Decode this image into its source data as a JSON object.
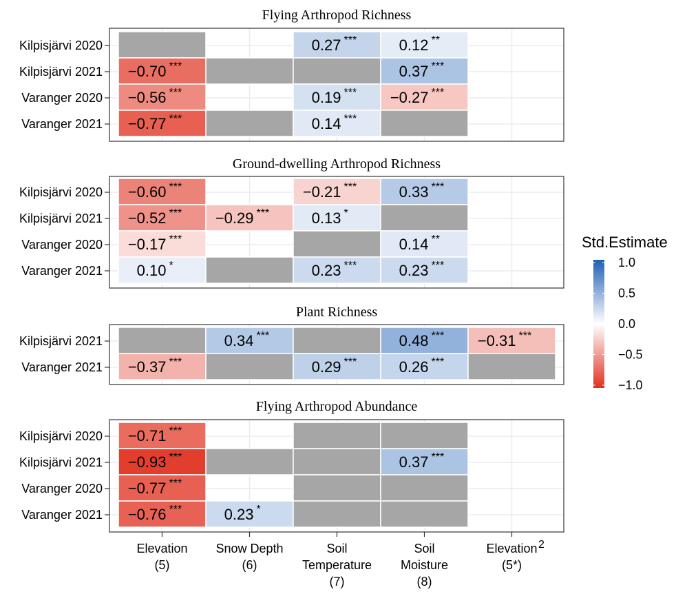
{
  "chart_data": {
    "type": "heatmap",
    "columns": [
      {
        "lines": [
          "Elevation",
          "(5)"
        ]
      },
      {
        "lines": [
          "Snow Depth",
          "(6)"
        ]
      },
      {
        "lines": [
          "Soil",
          "Temperature",
          "(7)"
        ]
      },
      {
        "lines": [
          "Soil",
          "Moisture",
          "(8)"
        ]
      },
      {
        "lines": [
          "Elevation",
          "(5*)"
        ],
        "superscript": "2"
      }
    ],
    "panels": [
      {
        "title": "Flying Arthropod Richness",
        "rows": [
          "Kilpisjärvi 2020",
          "Kilpisjärvi 2021",
          "Varanger 2020",
          "Varanger 2021"
        ],
        "cells": [
          [
            {
              "status": "na"
            },
            {
              "status": "blank"
            },
            {
              "value": 0.27,
              "label": "0.27",
              "sig": "***"
            },
            {
              "value": 0.12,
              "label": "0.12",
              "sig": "**"
            },
            {
              "status": "blank"
            }
          ],
          [
            {
              "value": -0.7,
              "label": "−0.70",
              "sig": "***"
            },
            {
              "status": "na"
            },
            {
              "status": "na"
            },
            {
              "value": 0.37,
              "label": "0.37",
              "sig": "***"
            },
            {
              "status": "blank"
            }
          ],
          [
            {
              "value": -0.56,
              "label": "−0.56",
              "sig": "***"
            },
            {
              "status": "blank"
            },
            {
              "value": 0.19,
              "label": "0.19",
              "sig": "***"
            },
            {
              "value": -0.27,
              "label": "−0.27",
              "sig": "***"
            },
            {
              "status": "blank"
            }
          ],
          [
            {
              "value": -0.77,
              "label": "−0.77",
              "sig": "***"
            },
            {
              "status": "na"
            },
            {
              "value": 0.14,
              "label": "0.14",
              "sig": "***"
            },
            {
              "status": "na"
            },
            {
              "status": "blank"
            }
          ]
        ]
      },
      {
        "title": "Ground-dwelling Arthropod Richness",
        "rows": [
          "Kilpisjärvi 2020",
          "Kilpisjärvi 2021",
          "Varanger 2020",
          "Varanger 2021"
        ],
        "cells": [
          [
            {
              "value": -0.6,
              "label": "−0.60",
              "sig": "***"
            },
            {
              "status": "blank"
            },
            {
              "value": -0.21,
              "label": "−0.21",
              "sig": "***"
            },
            {
              "value": 0.33,
              "label": "0.33",
              "sig": "***"
            },
            {
              "status": "blank"
            }
          ],
          [
            {
              "value": -0.52,
              "label": "−0.52",
              "sig": "***"
            },
            {
              "value": -0.29,
              "label": "−0.29",
              "sig": "***"
            },
            {
              "value": 0.13,
              "label": "0.13",
              "sig": "*"
            },
            {
              "status": "na"
            },
            {
              "status": "blank"
            }
          ],
          [
            {
              "value": -0.17,
              "label": "−0.17",
              "sig": "***"
            },
            {
              "status": "blank"
            },
            {
              "status": "na"
            },
            {
              "value": 0.14,
              "label": "0.14",
              "sig": "**"
            },
            {
              "status": "blank"
            }
          ],
          [
            {
              "value": 0.1,
              "label": "0.10",
              "sig": "*"
            },
            {
              "status": "na"
            },
            {
              "value": 0.23,
              "label": "0.23",
              "sig": "***"
            },
            {
              "value": 0.23,
              "label": "0.23",
              "sig": "***"
            },
            {
              "status": "blank"
            }
          ]
        ]
      },
      {
        "title": "Plant Richness",
        "rows": [
          "Kilpisjärvi 2021",
          "Varanger 2021"
        ],
        "cells": [
          [
            {
              "status": "na"
            },
            {
              "value": 0.34,
              "label": "0.34",
              "sig": "***"
            },
            {
              "status": "na"
            },
            {
              "value": 0.48,
              "label": "0.48",
              "sig": "***"
            },
            {
              "value": -0.31,
              "label": "−0.31",
              "sig": "***"
            }
          ],
          [
            {
              "value": -0.37,
              "label": "−0.37",
              "sig": "***"
            },
            {
              "status": "na"
            },
            {
              "value": 0.29,
              "label": "0.29",
              "sig": "***"
            },
            {
              "value": 0.26,
              "label": "0.26",
              "sig": "***"
            },
            {
              "status": "na"
            }
          ]
        ]
      },
      {
        "title": "Flying Arthropod Abundance",
        "rows": [
          "Kilpisjärvi 2020",
          "Kilpisjärvi 2021",
          "Varanger 2020",
          "Varanger 2021"
        ],
        "cells": [
          [
            {
              "value": -0.71,
              "label": "−0.71",
              "sig": "***"
            },
            {
              "status": "blank"
            },
            {
              "status": "na"
            },
            {
              "status": "na"
            },
            {
              "status": "blank"
            }
          ],
          [
            {
              "value": -0.93,
              "label": "−0.93",
              "sig": "***"
            },
            {
              "status": "na"
            },
            {
              "status": "na"
            },
            {
              "value": 0.37,
              "label": "0.37",
              "sig": "***"
            },
            {
              "status": "blank"
            }
          ],
          [
            {
              "value": -0.77,
              "label": "−0.77",
              "sig": "***"
            },
            {
              "status": "blank"
            },
            {
              "status": "na"
            },
            {
              "status": "na"
            },
            {
              "status": "blank"
            }
          ],
          [
            {
              "value": -0.76,
              "label": "−0.76",
              "sig": "***"
            },
            {
              "value": 0.23,
              "label": "0.23",
              "sig": "*"
            },
            {
              "status": "na"
            },
            {
              "status": "na"
            },
            {
              "status": "blank"
            }
          ]
        ]
      }
    ],
    "legend": {
      "title": "Std.Estimate",
      "ticks": [
        "1.0",
        "0.5",
        "0.0",
        "−0.5",
        "−1.0"
      ],
      "tick_values": [
        1.0,
        0.5,
        0.0,
        -0.5,
        -1.0
      ],
      "limits": [
        -1.0,
        1.0
      ],
      "placement": "right"
    },
    "colors": {
      "low": "#e0301e",
      "mid": "#ffffff",
      "high": "#1f5fb4",
      "na": "#a6a6a6",
      "gridline": "#ebebeb",
      "panel_border": "#333333"
    },
    "grid": true
  }
}
